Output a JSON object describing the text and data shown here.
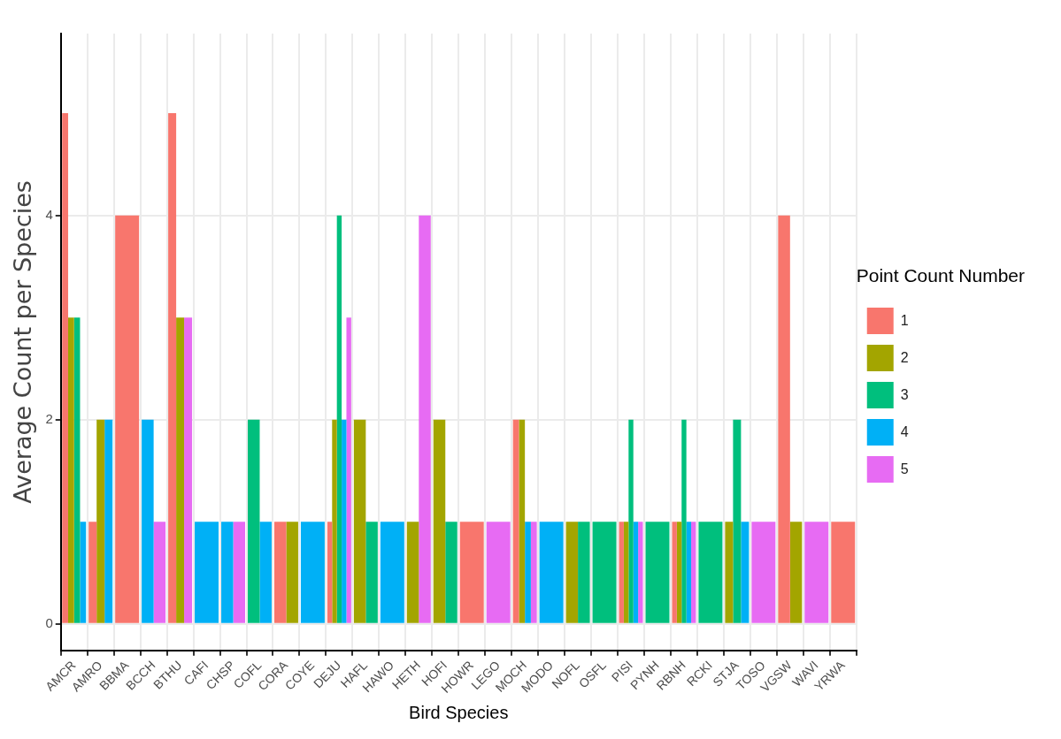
{
  "chart_data": {
    "type": "bar",
    "xlabel": "Bird Species",
    "ylabel": "Average Count per Species",
    "legend_title": "Point Count Number",
    "categories": [
      "AMCR",
      "AMRO",
      "BBMA",
      "BCCH",
      "BTHU",
      "CAFI",
      "CHSP",
      "COFL",
      "CORA",
      "COYE",
      "DEJU",
      "HAFL",
      "HAWO",
      "HETH",
      "HOFI",
      "HOWR",
      "LEGO",
      "MOCH",
      "MODO",
      "NOFL",
      "OSFL",
      "PISI",
      "PYNH",
      "RBNH",
      "RCKI",
      "STJA",
      "TOSO",
      "VGSW",
      "WAVI",
      "YRWA"
    ],
    "series": [
      {
        "name": "1",
        "color": "#f8766d",
        "values": [
          5,
          1,
          4,
          null,
          5,
          null,
          null,
          null,
          1,
          null,
          1,
          null,
          null,
          null,
          null,
          1,
          null,
          2,
          null,
          null,
          null,
          1,
          null,
          1,
          null,
          null,
          null,
          4,
          null,
          1
        ]
      },
      {
        "name": "2",
        "color": "#a3a500",
        "values": [
          3,
          2,
          null,
          null,
          3,
          null,
          null,
          null,
          1,
          null,
          2,
          2,
          null,
          1,
          2,
          null,
          null,
          2,
          null,
          1,
          null,
          1,
          null,
          1,
          null,
          1,
          null,
          1,
          null,
          null
        ]
      },
      {
        "name": "3",
        "color": "#00bf7d",
        "values": [
          3,
          null,
          null,
          null,
          null,
          null,
          null,
          2,
          null,
          null,
          4,
          1,
          null,
          null,
          1,
          null,
          null,
          null,
          null,
          1,
          1,
          2,
          1,
          2,
          1,
          2,
          null,
          null,
          null,
          null
        ]
      },
      {
        "name": "4",
        "color": "#00b0f6",
        "values": [
          1,
          2,
          null,
          2,
          null,
          1,
          1,
          1,
          null,
          1,
          2,
          null,
          1,
          null,
          null,
          null,
          null,
          1,
          1,
          null,
          null,
          1,
          null,
          1,
          null,
          1,
          null,
          null,
          null,
          null
        ]
      },
      {
        "name": "5",
        "color": "#e76bf3",
        "values": [
          null,
          null,
          null,
          1,
          3,
          null,
          1,
          null,
          null,
          null,
          3,
          null,
          null,
          4,
          null,
          null,
          1,
          1,
          null,
          null,
          null,
          1,
          null,
          1,
          null,
          null,
          1,
          null,
          1,
          null
        ]
      }
    ],
    "ylim": [
      -0.26,
      5.78
    ],
    "yticks": [
      0,
      2,
      4
    ],
    "grid": true,
    "legend": "right"
  }
}
